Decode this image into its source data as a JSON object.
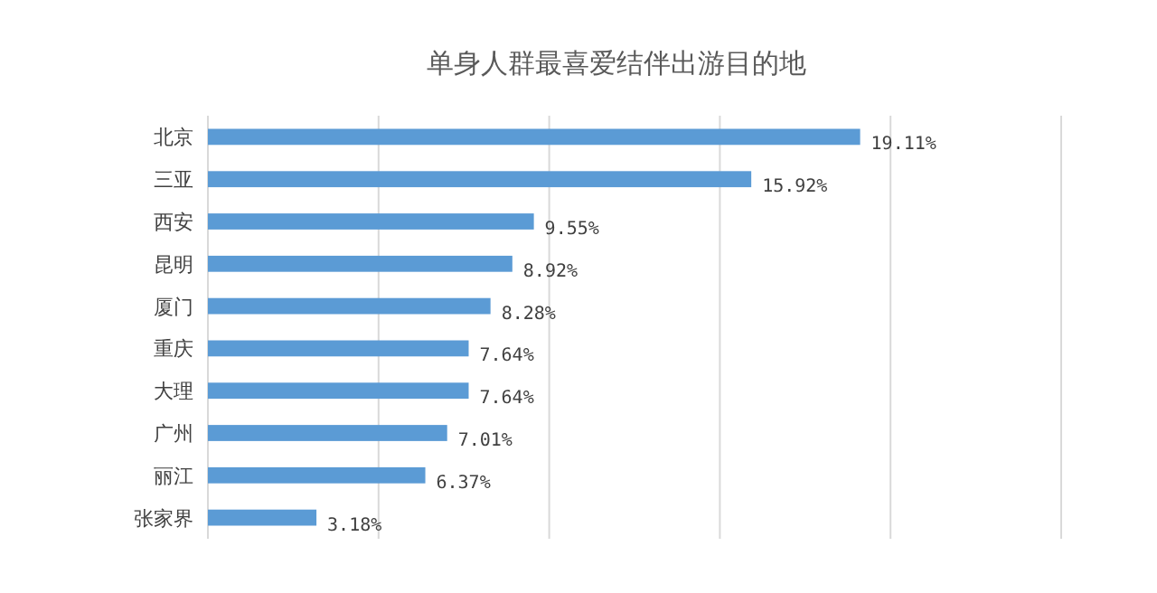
{
  "chart_data": {
    "type": "bar",
    "orientation": "horizontal",
    "title": "单身人群最喜爱结伴出游目的地",
    "categories": [
      "北京",
      "三亚",
      "西安",
      "昆明",
      "厦门",
      "重庆",
      "大理",
      "广州",
      "丽江",
      "张家界"
    ],
    "values": [
      19.11,
      15.92,
      9.55,
      8.92,
      8.28,
      7.64,
      7.64,
      7.01,
      6.37,
      3.18
    ],
    "value_labels": [
      "19.11%",
      "15.92%",
      "9.55%",
      "8.92%",
      "8.28%",
      "7.64%",
      "7.64%",
      "7.01%",
      "6.37%",
      "3.18%"
    ],
    "color": "#5b9bd5",
    "xlim": [
      0,
      25
    ],
    "xticks": [
      {
        "value": 0,
        "label": null
      },
      {
        "value": 5,
        "label": null
      },
      {
        "value": 10,
        "label": null
      },
      {
        "value": 15,
        "label": null
      },
      {
        "value": 20,
        "label": null
      },
      {
        "value": 25,
        "label": null
      }
    ],
    "grid": "x",
    "tick_labels": "y"
  }
}
